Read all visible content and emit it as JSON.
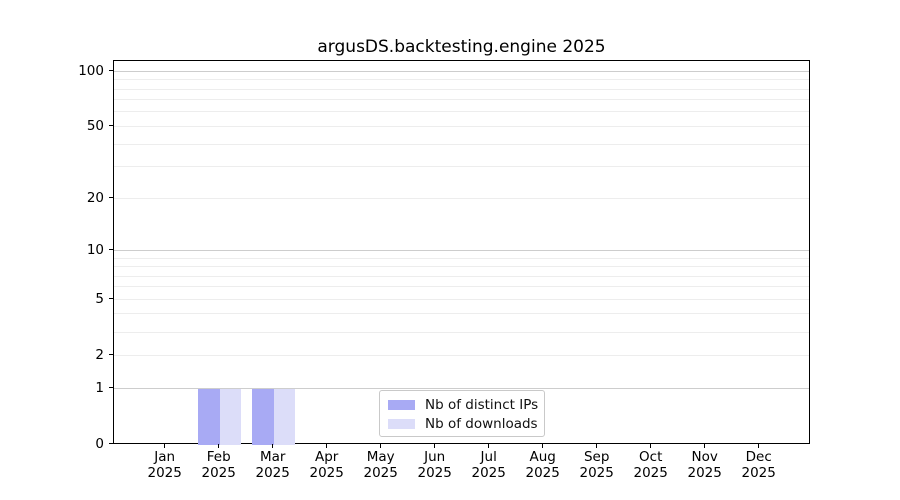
{
  "title": "argusDS.backtesting.engine 2025",
  "chart_data": {
    "type": "bar",
    "title": "argusDS.backtesting.engine 2025",
    "categories": [
      "Jan",
      "Feb",
      "Mar",
      "Apr",
      "May",
      "Jun",
      "Jul",
      "Aug",
      "Sep",
      "Oct",
      "Nov",
      "Dec"
    ],
    "x_year_label": "2025",
    "series": [
      {
        "name": "Nb of distinct IPs",
        "color": "#a8aaf4",
        "values": [
          0,
          1,
          1,
          0,
          0,
          0,
          0,
          0,
          0,
          0,
          0,
          0
        ]
      },
      {
        "name": "Nb of downloads",
        "color": "#dcddf9",
        "values": [
          0,
          1,
          1,
          0,
          0,
          0,
          0,
          0,
          0,
          0,
          0,
          0
        ]
      }
    ],
    "xlabel": "",
    "ylabel": "",
    "y_scale": "log1p",
    "ylim": [
      0,
      115
    ],
    "yticks": [
      0,
      1,
      2,
      5,
      10,
      20,
      50,
      100
    ],
    "major_grid_values": [
      1,
      10,
      100
    ],
    "minor_grid_values": [
      2,
      3,
      4,
      5,
      6,
      7,
      8,
      9,
      20,
      30,
      40,
      50,
      60,
      70,
      80,
      90
    ],
    "grid": "on",
    "legend_position": "lower center",
    "colors": {
      "major_grid": "#cdcdcd",
      "minor_grid": "#ededed",
      "spine": "#000000",
      "background": "#ffffff"
    }
  }
}
